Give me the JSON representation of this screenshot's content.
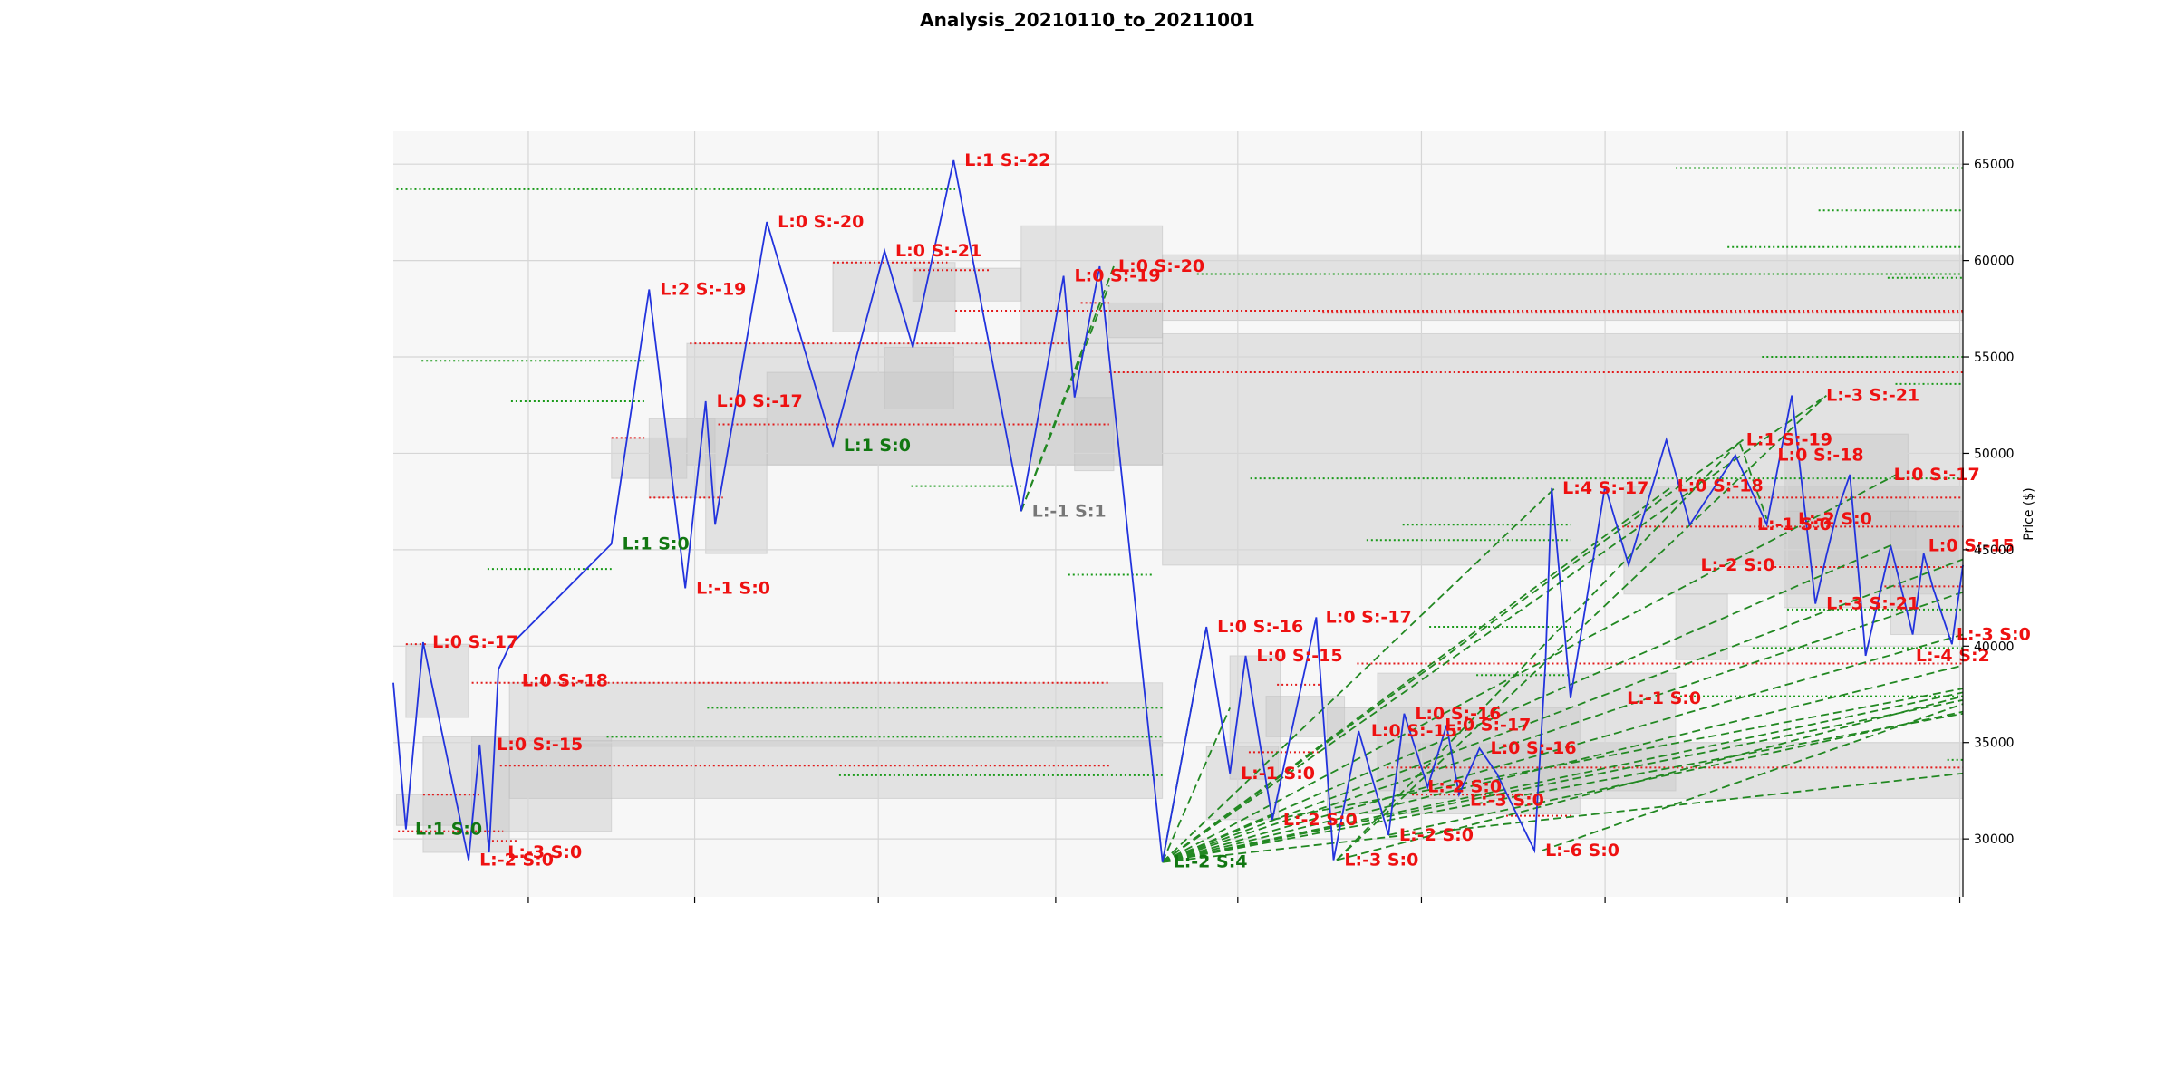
{
  "chart_data": {
    "type": "line",
    "title": "Analysis_20210110_to_20211001",
    "xlabel": "",
    "ylabel": "Price ($)",
    "ylim": [
      27000,
      66700
    ],
    "xlim": [
      0,
      100
    ],
    "yticks": [
      30000,
      35000,
      40000,
      45000,
      50000,
      55000,
      60000,
      65000
    ],
    "xticks": [
      8.6,
      19.2,
      30.9,
      42.2,
      53.8,
      65.5,
      77.2,
      88.8,
      99.8
    ],
    "grid": true,
    "colors": {
      "price": "#2233dd",
      "red": "#ee1111",
      "green": "#117711",
      "gray": "#777777",
      "dashed": "#228822",
      "box": "#c8c8c8",
      "plotbg": "#f7f7f7"
    },
    "series": [
      {
        "x": [
          0,
          0.8,
          1.9,
          4.8,
          5.5,
          6.1,
          6.7,
          7.4,
          13.9,
          16.3,
          18.6,
          19.9,
          20.5,
          23.8,
          28.0,
          31.3,
          33.1,
          35.7,
          40.0,
          42.7,
          43.4,
          45.0,
          49.0,
          51.8,
          53.3,
          54.3,
          56.0,
          58.8,
          59.9,
          61.5,
          63.4,
          64.4,
          65.9,
          67.1,
          67.9,
          69.2,
          70.3,
          72.7,
          73.4,
          73.8,
          75.0,
          77.2,
          78.7,
          81.1,
          82.6,
          85.5,
          87.5,
          89.1,
          90.6,
          91.3,
          92.0,
          92.8,
          93.8,
          95.4,
          96.8,
          97.5,
          98.1,
          99.3,
          100
        ],
        "y": [
          38100,
          30500,
          40200,
          28900,
          34900,
          29300,
          38800,
          40000,
          45300,
          58500,
          43000,
          52700,
          46300,
          62000,
          50400,
          60500,
          55500,
          65200,
          47000,
          59200,
          52900,
          59700,
          28800,
          41000,
          33400,
          39500,
          31000,
          41500,
          28900,
          35600,
          30200,
          36500,
          32700,
          35900,
          32300,
          34700,
          33400,
          29400,
          39100,
          48200,
          37300,
          48300,
          44200,
          50700,
          46300,
          49900,
          46300,
          53000,
          42200,
          44700,
          47000,
          48900,
          39500,
          45200,
          40600,
          44800,
          43000,
          40100,
          44200
        ]
      }
    ],
    "price_labels": [
      {
        "text": "L:0 S:-17",
        "x": 2.2,
        "y": 40200,
        "color": "red"
      },
      {
        "text": "L:1 S:0",
        "x": 1.1,
        "y": 30500,
        "color": "green"
      },
      {
        "text": "L:-2 S:0",
        "x": 5.2,
        "y": 28900,
        "color": "red"
      },
      {
        "text": "L:0 S:-15",
        "x": 6.3,
        "y": 34900,
        "color": "red"
      },
      {
        "text": "L:-3 S:0",
        "x": 7.0,
        "y": 29300,
        "color": "red"
      },
      {
        "text": "L:0 S:-18",
        "x": 7.9,
        "y": 38200,
        "color": "red"
      },
      {
        "text": "L:1 S:0",
        "x": 14.3,
        "y": 45300,
        "color": "green"
      },
      {
        "text": "L:2 S:-19",
        "x": 16.7,
        "y": 58500,
        "color": "red"
      },
      {
        "text": "L:-1 S:0",
        "x": 19.0,
        "y": 43000,
        "color": "red"
      },
      {
        "text": "L:0 S:-17",
        "x": 20.3,
        "y": 52700,
        "color": "red"
      },
      {
        "text": "L:0 S:-20",
        "x": 24.2,
        "y": 62000,
        "color": "red"
      },
      {
        "text": "L:1 S:0",
        "x": 28.4,
        "y": 50400,
        "color": "green"
      },
      {
        "text": "L:0 S:-21",
        "x": 31.7,
        "y": 60500,
        "color": "red"
      },
      {
        "text": "L:1 S:-22",
        "x": 36.1,
        "y": 65200,
        "color": "red"
      },
      {
        "text": "L:-1 S:1",
        "x": 40.4,
        "y": 47000,
        "color": "gray"
      },
      {
        "text": "L:0 S:-19",
        "x": 43.1,
        "y": 59200,
        "color": "red"
      },
      {
        "text": "L:0 S:-20",
        "x": 45.9,
        "y": 59700,
        "color": "red"
      },
      {
        "text": "L:-2 S:4",
        "x": 49.4,
        "y": 28800,
        "color": "green"
      },
      {
        "text": "L:0 S:-16",
        "x": 52.2,
        "y": 41000,
        "color": "red"
      },
      {
        "text": "L:-1 S:0",
        "x": 53.7,
        "y": 33400,
        "color": "red"
      },
      {
        "text": "L:0 S:-15",
        "x": 54.7,
        "y": 39500,
        "color": "red"
      },
      {
        "text": "L:-2 S:0",
        "x": 56.4,
        "y": 31000,
        "color": "red"
      },
      {
        "text": "L:0 S:-17",
        "x": 59.1,
        "y": 41500,
        "color": "red"
      },
      {
        "text": "L:-3 S:0",
        "x": 60.3,
        "y": 28900,
        "color": "red"
      },
      {
        "text": "L:0 S:-15",
        "x": 62.0,
        "y": 35600,
        "color": "red"
      },
      {
        "text": "L:-2 S:0",
        "x": 63.8,
        "y": 30200,
        "color": "red"
      },
      {
        "text": "L:0 S:-16",
        "x": 64.8,
        "y": 36500,
        "color": "red"
      },
      {
        "text": "L:-2 S:0",
        "x": 65.6,
        "y": 32700,
        "color": "red"
      },
      {
        "text": "L:0 S:-17",
        "x": 66.7,
        "y": 35900,
        "color": "red"
      },
      {
        "text": "L:-3 S:0",
        "x": 68.3,
        "y": 32000,
        "color": "red"
      },
      {
        "text": "L:0 S:-16",
        "x": 69.6,
        "y": 34700,
        "color": "red"
      },
      {
        "text": "L:-6 S:0",
        "x": 73.1,
        "y": 29400,
        "color": "red"
      },
      {
        "text": "L:4 S:-17",
        "x": 74.2,
        "y": 48200,
        "color": "red"
      },
      {
        "text": "L:-1 S:0",
        "x": 78.3,
        "y": 37300,
        "color": "red"
      },
      {
        "text": "L:0 S:-18",
        "x": 81.5,
        "y": 48300,
        "color": "red"
      },
      {
        "text": "L:-2 S:0",
        "x": 83.0,
        "y": 44200,
        "color": "red"
      },
      {
        "text": "L:1 S:-19",
        "x": 85.9,
        "y": 50700,
        "color": "red"
      },
      {
        "text": "L:-1 S:0",
        "x": 86.6,
        "y": 46300,
        "color": "red"
      },
      {
        "text": "L:0 S:-18",
        "x": 87.9,
        "y": 49900,
        "color": "red"
      },
      {
        "text": "L:-2 S:0",
        "x": 89.2,
        "y": 46600,
        "color": "red"
      },
      {
        "text": "L:-3 S:-21",
        "x": 91.0,
        "y": 53000,
        "color": "red"
      },
      {
        "text": "L:-3 S:-21",
        "x": 91.0,
        "y": 42200,
        "color": "red"
      },
      {
        "text": "L:0 S:-17",
        "x": 95.3,
        "y": 48900,
        "color": "red"
      },
      {
        "text": "L:-4 S:2",
        "x": 96.7,
        "y": 39500,
        "color": "red"
      },
      {
        "text": "L:0 S:-15",
        "x": 97.5,
        "y": 45200,
        "color": "red"
      },
      {
        "text": "L:-3 S:0",
        "x": 99.3,
        "y": 40600,
        "color": "red"
      }
    ],
    "red_levels": [
      {
        "y": 40100,
        "x0": 0.8,
        "x1": 2.2
      },
      {
        "y": 32300,
        "x0": 1.9,
        "x1": 5.5
      },
      {
        "y": 30400,
        "x0": 0.3,
        "x1": 7.0
      },
      {
        "y": 29900,
        "x0": 6.0,
        "x1": 8.0
      },
      {
        "y": 38100,
        "x0": 5.0,
        "x1": 45.6
      },
      {
        "y": 33800,
        "x0": 6.8,
        "x1": 45.6
      },
      {
        "y": 50800,
        "x0": 13.9,
        "x1": 16.0
      },
      {
        "y": 47700,
        "x0": 16.3,
        "x1": 21.0
      },
      {
        "y": 55700,
        "x0": 18.9,
        "x1": 42.9
      },
      {
        "y": 51500,
        "x0": 20.7,
        "x1": 45.6
      },
      {
        "y": 59900,
        "x0": 28.0,
        "x1": 35.3
      },
      {
        "y": 59500,
        "x0": 33.2,
        "x1": 38.0
      },
      {
        "y": 57400,
        "x0": 35.8,
        "x1": 100
      },
      {
        "y": 57800,
        "x0": 43.8,
        "x1": 45.6
      },
      {
        "y": 54200,
        "x0": 45.6,
        "x1": 100
      },
      {
        "y": 57300,
        "x0": 59.2,
        "x1": 100
      },
      {
        "y": 38000,
        "x0": 56.3,
        "x1": 59.0
      },
      {
        "y": 34500,
        "x0": 54.5,
        "x1": 59.0
      },
      {
        "y": 39100,
        "x0": 61.4,
        "x1": 100
      },
      {
        "y": 33700,
        "x0": 63.3,
        "x1": 100
      },
      {
        "y": 32300,
        "x0": 64.9,
        "x1": 72.5
      },
      {
        "y": 31200,
        "x0": 70.9,
        "x1": 75.0
      },
      {
        "y": 46200,
        "x0": 78.3,
        "x1": 100
      },
      {
        "y": 47700,
        "x0": 85.0,
        "x1": 100
      },
      {
        "y": 44100,
        "x0": 88.0,
        "x1": 100
      },
      {
        "y": 43100,
        "x0": 95.0,
        "x1": 100
      }
    ],
    "green_levels": [
      {
        "y": 63700,
        "x0": 0.2,
        "x1": 35.8
      },
      {
        "y": 54800,
        "x0": 1.8,
        "x1": 16.0
      },
      {
        "y": 52700,
        "x0": 7.5,
        "x1": 16.0
      },
      {
        "y": 44000,
        "x0": 6.0,
        "x1": 13.9
      },
      {
        "y": 35300,
        "x0": 13.6,
        "x1": 49.0
      },
      {
        "y": 36800,
        "x0": 20.0,
        "x1": 49.0
      },
      {
        "y": 33300,
        "x0": 28.4,
        "x1": 49.0
      },
      {
        "y": 48300,
        "x0": 33.0,
        "x1": 40.0
      },
      {
        "y": 43700,
        "x0": 43.0,
        "x1": 48.4
      },
      {
        "y": 59300,
        "x0": 51.2,
        "x1": 100
      },
      {
        "y": 48700,
        "x0": 54.6,
        "x1": 100
      },
      {
        "y": 46300,
        "x0": 64.3,
        "x1": 75.0
      },
      {
        "y": 45500,
        "x0": 62.0,
        "x1": 75.0
      },
      {
        "y": 41000,
        "x0": 66.0,
        "x1": 75.0
      },
      {
        "y": 38500,
        "x0": 69.0,
        "x1": 75.0
      },
      {
        "y": 64800,
        "x0": 81.7,
        "x1": 100
      },
      {
        "y": 62600,
        "x0": 90.8,
        "x1": 100
      },
      {
        "y": 60700,
        "x0": 85.0,
        "x1": 100
      },
      {
        "y": 59100,
        "x0": 95.2,
        "x1": 100
      },
      {
        "y": 55000,
        "x0": 87.2,
        "x1": 100
      },
      {
        "y": 53600,
        "x0": 95.7,
        "x1": 100
      },
      {
        "y": 41900,
        "x0": 88.8,
        "x1": 100
      },
      {
        "y": 39900,
        "x0": 86.6,
        "x1": 100
      },
      {
        "y": 37400,
        "x0": 81.7,
        "x1": 100
      },
      {
        "y": 34100,
        "x0": 99.0,
        "x1": 100
      }
    ],
    "zones": [
      {
        "x0": 0.8,
        "x1": 4.8,
        "y0": 36300,
        "y1": 40100
      },
      {
        "x0": 0.2,
        "x1": 5.0,
        "y0": 30700,
        "y1": 32300
      },
      {
        "x0": 1.9,
        "x1": 7.4,
        "y0": 29300,
        "y1": 35300
      },
      {
        "x0": 5.0,
        "x1": 13.9,
        "y0": 30400,
        "y1": 35300
      },
      {
        "x0": 7.4,
        "x1": 49.0,
        "y0": 34800,
        "y1": 38100
      },
      {
        "x0": 7.4,
        "x1": 49.0,
        "y0": 32100,
        "y1": 35100
      },
      {
        "x0": 13.9,
        "x1": 18.7,
        "y0": 48700,
        "y1": 50800
      },
      {
        "x0": 16.3,
        "x1": 20.5,
        "y0": 47700,
        "y1": 51800
      },
      {
        "x0": 19.9,
        "x1": 23.8,
        "y0": 44800,
        "y1": 51800
      },
      {
        "x0": 18.7,
        "x1": 49.0,
        "y0": 49400,
        "y1": 55700
      },
      {
        "x0": 23.8,
        "x1": 49.0,
        "y0": 49400,
        "y1": 54200
      },
      {
        "x0": 28.0,
        "x1": 35.8,
        "y0": 56300,
        "y1": 59900
      },
      {
        "x0": 31.3,
        "x1": 35.7,
        "y0": 52300,
        "y1": 55500
      },
      {
        "x0": 33.1,
        "x1": 40.0,
        "y0": 57900,
        "y1": 59600
      },
      {
        "x0": 40.0,
        "x1": 49.0,
        "y0": 55700,
        "y1": 61800
      },
      {
        "x0": 43.4,
        "x1": 45.9,
        "y0": 49100,
        "y1": 52900
      },
      {
        "x0": 45.6,
        "x1": 49.0,
        "y0": 56000,
        "y1": 57800
      },
      {
        "x0": 49.0,
        "x1": 100,
        "y0": 44200,
        "y1": 56200
      },
      {
        "x0": 49.0,
        "x1": 100,
        "y0": 56900,
        "y1": 60300
      },
      {
        "x0": 51.8,
        "x1": 56.4,
        "y0": 31000,
        "y1": 34800
      },
      {
        "x0": 53.3,
        "x1": 56.5,
        "y0": 33100,
        "y1": 39500
      },
      {
        "x0": 55.6,
        "x1": 60.6,
        "y0": 35300,
        "y1": 37400
      },
      {
        "x0": 59.5,
        "x1": 75.6,
        "y0": 31300,
        "y1": 36800
      },
      {
        "x0": 62.7,
        "x1": 81.7,
        "y0": 32500,
        "y1": 38600
      },
      {
        "x0": 64.1,
        "x1": 100,
        "y0": 32100,
        "y1": 35000
      },
      {
        "x0": 78.4,
        "x1": 100,
        "y0": 42700,
        "y1": 48300
      },
      {
        "x0": 81.7,
        "x1": 85.0,
        "y0": 39300,
        "y1": 42700
      },
      {
        "x0": 88.6,
        "x1": 96.5,
        "y0": 46300,
        "y1": 51000
      },
      {
        "x0": 88.6,
        "x1": 97.0,
        "y0": 42000,
        "y1": 47000
      },
      {
        "x0": 95.4,
        "x1": 100,
        "y0": 40600,
        "y1": 47000
      }
    ],
    "projection_lines": [
      {
        "x0": 40.0,
        "y0": 47000,
        "x1": 45.9,
        "y1": 59700
      },
      {
        "x0": 40.0,
        "y0": 47000,
        "x1": 45.6,
        "y1": 58700
      },
      {
        "x0": 49.0,
        "y0": 28800,
        "x1": 51.8,
        "y1": 41000
      },
      {
        "x0": 49.0,
        "y0": 28800,
        "x1": 53.3,
        "y1": 36800
      },
      {
        "x0": 49.0,
        "y0": 28800,
        "x1": 56.0,
        "y1": 31200
      },
      {
        "x0": 49.0,
        "y0": 28800,
        "x1": 74.0,
        "y1": 48200
      },
      {
        "x0": 49.0,
        "y0": 28800,
        "x1": 81.5,
        "y1": 48300
      },
      {
        "x0": 49.0,
        "y0": 28800,
        "x1": 86.0,
        "y1": 50700
      },
      {
        "x0": 49.0,
        "y0": 28800,
        "x1": 91.3,
        "y1": 53000
      },
      {
        "x0": 49.0,
        "y0": 28800,
        "x1": 96.0,
        "y1": 49000
      },
      {
        "x0": 49.0,
        "y0": 28800,
        "x1": 95.6,
        "y1": 45300
      },
      {
        "x0": 49.0,
        "y0": 28800,
        "x1": 100,
        "y1": 44500
      },
      {
        "x0": 49.0,
        "y0": 28800,
        "x1": 100,
        "y1": 42800
      },
      {
        "x0": 49.0,
        "y0": 28800,
        "x1": 100,
        "y1": 40600
      },
      {
        "x0": 49.0,
        "y0": 28800,
        "x1": 100,
        "y1": 39000
      },
      {
        "x0": 49.0,
        "y0": 28800,
        "x1": 100,
        "y1": 37600
      },
      {
        "x0": 49.0,
        "y0": 28800,
        "x1": 100,
        "y1": 37200
      },
      {
        "x0": 49.0,
        "y0": 28800,
        "x1": 100,
        "y1": 36500
      },
      {
        "x0": 49.0,
        "y0": 28800,
        "x1": 100,
        "y1": 33400
      },
      {
        "x0": 56.0,
        "y0": 31000,
        "x1": 100,
        "y1": 37800
      },
      {
        "x0": 60.1,
        "y0": 28900,
        "x1": 100,
        "y1": 37400
      },
      {
        "x0": 60.1,
        "y0": 28900,
        "x1": 85.9,
        "y1": 50700
      },
      {
        "x0": 60.1,
        "y0": 28900,
        "x1": 91.3,
        "y1": 53000
      },
      {
        "x0": 63.4,
        "y0": 30200,
        "x1": 100,
        "y1": 36600
      },
      {
        "x0": 73.2,
        "y0": 29400,
        "x1": 100,
        "y1": 37000
      },
      {
        "x0": 85.8,
        "y0": 50500,
        "x1": 87.5,
        "y1": 46600
      }
    ]
  }
}
